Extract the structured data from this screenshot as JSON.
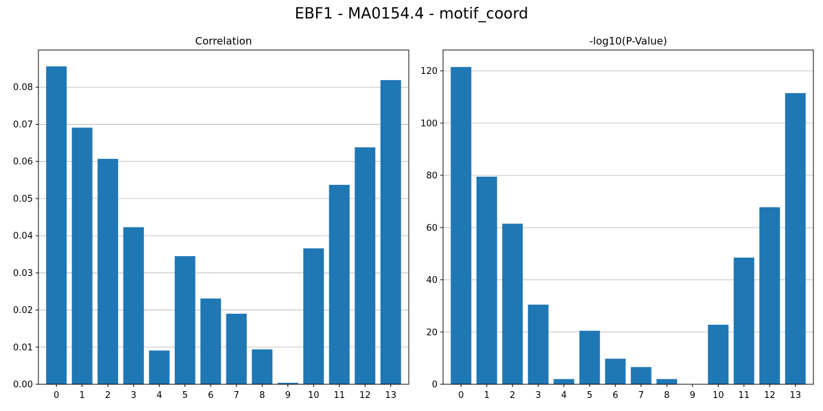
{
  "suptitle": "EBF1 - MA0154.4 - motif_coord",
  "chart_data": [
    {
      "type": "bar",
      "title": "Correlation",
      "xlabel": "",
      "ylabel": "",
      "categories": [
        "0",
        "1",
        "2",
        "3",
        "4",
        "5",
        "6",
        "7",
        "8",
        "9",
        "10",
        "11",
        "12",
        "13"
      ],
      "values": [
        0.0856,
        0.0691,
        0.0607,
        0.0423,
        0.0091,
        0.0345,
        0.0231,
        0.019,
        0.0094,
        0.0004,
        0.0366,
        0.0537,
        0.0638,
        0.0819
      ],
      "ylim": [
        0,
        0.09
      ],
      "yticks": [
        0.0,
        0.01,
        0.02,
        0.03,
        0.04,
        0.05,
        0.06,
        0.07,
        0.08
      ],
      "ytick_labels": [
        "0.00",
        "0.01",
        "0.02",
        "0.03",
        "0.04",
        "0.05",
        "0.06",
        "0.07",
        "0.08"
      ],
      "grid": "y",
      "color": "#1f77b4"
    },
    {
      "type": "bar",
      "title": "-log10(P-Value)",
      "xlabel": "",
      "ylabel": "",
      "categories": [
        "0",
        "1",
        "2",
        "3",
        "4",
        "5",
        "6",
        "7",
        "8",
        "9",
        "10",
        "11",
        "12",
        "13"
      ],
      "values": [
        121.5,
        79.5,
        61.5,
        30.5,
        2.0,
        20.5,
        9.8,
        6.6,
        2.0,
        0.0,
        22.8,
        48.5,
        67.8,
        111.5
      ],
      "ylim": [
        0,
        128
      ],
      "yticks": [
        0,
        20,
        40,
        60,
        80,
        100,
        120
      ],
      "ytick_labels": [
        "0",
        "20",
        "40",
        "60",
        "80",
        "100",
        "120"
      ],
      "grid": "y",
      "color": "#1f77b4"
    }
  ]
}
